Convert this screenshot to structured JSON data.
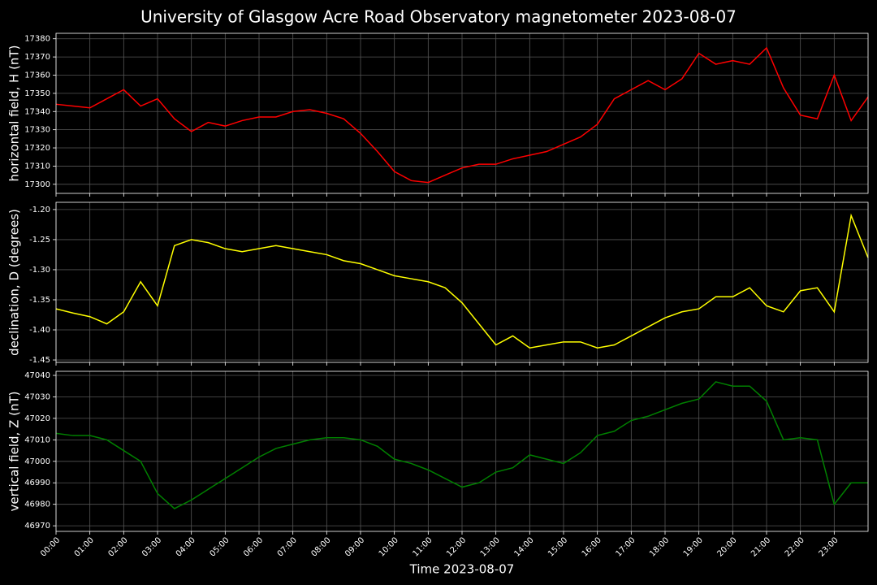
{
  "title": "University of Glasgow Acre Road Observatory magnetometer 2023-08-07",
  "chart_data": [
    {
      "type": "line",
      "ylabel": "horizontal field, H (nT)",
      "grid": true,
      "x": [
        0,
        0.5,
        1,
        1.5,
        2,
        2.5,
        3,
        3.5,
        4,
        4.5,
        5,
        5.5,
        6,
        6.5,
        7,
        7.5,
        8,
        8.5,
        9,
        9.5,
        10,
        10.5,
        11,
        11.5,
        12,
        12.5,
        13,
        13.5,
        14,
        14.5,
        15,
        15.5,
        16,
        16.5,
        17,
        17.5,
        18,
        18.5,
        19,
        19.5,
        20,
        20.5,
        21,
        21.5,
        22,
        22.5,
        23,
        23.5,
        24
      ],
      "xlim": [
        0,
        24
      ],
      "ylim": [
        17295,
        17383
      ],
      "yticks": [
        17300,
        17310,
        17320,
        17330,
        17340,
        17350,
        17360,
        17370,
        17380
      ],
      "series": [
        {
          "color": "#ff0000",
          "values": [
            17344,
            17343,
            17342,
            17347,
            17352,
            17343,
            17347,
            17336,
            17329,
            17334,
            17332,
            17335,
            17337,
            17337,
            17340,
            17341,
            17339,
            17336,
            17328,
            17318,
            17307,
            17302,
            17301,
            17305,
            17309,
            17311,
            17311,
            17314,
            17316,
            17318,
            17322,
            17326,
            17333,
            17347,
            17352,
            17357,
            17352,
            17358,
            17372,
            17366,
            17368,
            17366,
            17375,
            17353,
            17338,
            17336,
            17360,
            17335,
            17348
          ]
        }
      ]
    },
    {
      "type": "line",
      "ylabel": "declination, D (degrees)",
      "grid": true,
      "x": [
        0,
        0.5,
        1,
        1.5,
        2,
        2.5,
        3,
        3.5,
        4,
        4.5,
        5,
        5.5,
        6,
        6.5,
        7,
        7.5,
        8,
        8.5,
        9,
        9.5,
        10,
        10.5,
        11,
        11.5,
        12,
        12.5,
        13,
        13.5,
        14,
        14.5,
        15,
        15.5,
        16,
        16.5,
        17,
        17.5,
        18,
        18.5,
        19,
        19.5,
        20,
        20.5,
        21,
        21.5,
        22,
        22.5,
        23,
        23.5,
        24
      ],
      "xlim": [
        0,
        24
      ],
      "ylim": [
        -1.454,
        -1.188
      ],
      "yticks": [
        -1.45,
        {
          "value": -1.4,
          "label": "-1.40"
        },
        -1.35,
        {
          "value": -1.3,
          "label": "-1.30"
        },
        -1.25,
        {
          "value": -1.2,
          "label": "-1.20"
        }
      ],
      "series": [
        {
          "color": "#ffff00",
          "values": [
            -1.365,
            -1.372,
            -1.378,
            -1.39,
            -1.37,
            -1.32,
            -1.36,
            -1.26,
            -1.25,
            -1.255,
            -1.265,
            -1.27,
            -1.265,
            -1.26,
            -1.265,
            -1.27,
            -1.275,
            -1.285,
            -1.29,
            -1.3,
            -1.31,
            -1.315,
            -1.32,
            -1.33,
            -1.355,
            -1.39,
            -1.425,
            -1.41,
            -1.43,
            -1.425,
            -1.42,
            -1.42,
            -1.43,
            -1.425,
            -1.41,
            -1.395,
            -1.38,
            -1.37,
            -1.365,
            -1.345,
            -1.345,
            -1.33,
            -1.36,
            -1.37,
            -1.335,
            -1.33,
            -1.37,
            -1.21,
            -1.28
          ]
        }
      ]
    },
    {
      "type": "line",
      "ylabel": "vertical field, Z (nT)",
      "xlabel": "Time 2023-08-07",
      "grid": true,
      "x": [
        0,
        0.5,
        1,
        1.5,
        2,
        2.5,
        3,
        3.5,
        4,
        4.5,
        5,
        5.5,
        6,
        6.5,
        7,
        7.5,
        8,
        8.5,
        9,
        9.5,
        10,
        10.5,
        11,
        11.5,
        12,
        12.5,
        13,
        13.5,
        14,
        14.5,
        15,
        15.5,
        16,
        16.5,
        17,
        17.5,
        18,
        18.5,
        19,
        19.5,
        20,
        20.5,
        21,
        21.5,
        22,
        22.5,
        23,
        23.5,
        24
      ],
      "xlim": [
        0,
        24
      ],
      "ylim": [
        46967.4,
        47041.9
      ],
      "xticks": [
        {
          "value": 0,
          "label": "00:00"
        },
        {
          "value": 1,
          "label": "01:00"
        },
        {
          "value": 2,
          "label": "02:00"
        },
        {
          "value": 3,
          "label": "03:00"
        },
        {
          "value": 4,
          "label": "04:00"
        },
        {
          "value": 5,
          "label": "05:00"
        },
        {
          "value": 6,
          "label": "06:00"
        },
        {
          "value": 7,
          "label": "07:00"
        },
        {
          "value": 8,
          "label": "08:00"
        },
        {
          "value": 9,
          "label": "09:00"
        },
        {
          "value": 10,
          "label": "10:00"
        },
        {
          "value": 11,
          "label": "11:00"
        },
        {
          "value": 12,
          "label": "12:00"
        },
        {
          "value": 13,
          "label": "13:00"
        },
        {
          "value": 14,
          "label": "14:00"
        },
        {
          "value": 15,
          "label": "15:00"
        },
        {
          "value": 16,
          "label": "16:00"
        },
        {
          "value": 17,
          "label": "17:00"
        },
        {
          "value": 18,
          "label": "18:00"
        },
        {
          "value": 19,
          "label": "19:00"
        },
        {
          "value": 20,
          "label": "20:00"
        },
        {
          "value": 21,
          "label": "21:00"
        },
        {
          "value": 22,
          "label": "22:00"
        },
        {
          "value": 23,
          "label": "23:00"
        }
      ],
      "yticks": [
        46970,
        46980,
        46990,
        47000,
        47010,
        47020,
        47030,
        47040
      ],
      "series": [
        {
          "color": "#008000",
          "values": [
            47013,
            47012,
            47012,
            47010,
            47005,
            47000,
            46985,
            46978,
            46982,
            46987,
            46992,
            46997,
            47002,
            47006,
            47008,
            47010,
            47011,
            47011,
            47010,
            47007,
            47001,
            46999,
            46996,
            46992,
            46988,
            46990,
            46995,
            46997,
            47003,
            47001,
            46999,
            47004,
            47012,
            47014,
            47019,
            47021,
            47024,
            47027,
            47029,
            47037,
            47035,
            47035,
            47028,
            47010,
            47011,
            47010,
            46980,
            46990,
            46990
          ]
        }
      ]
    }
  ]
}
